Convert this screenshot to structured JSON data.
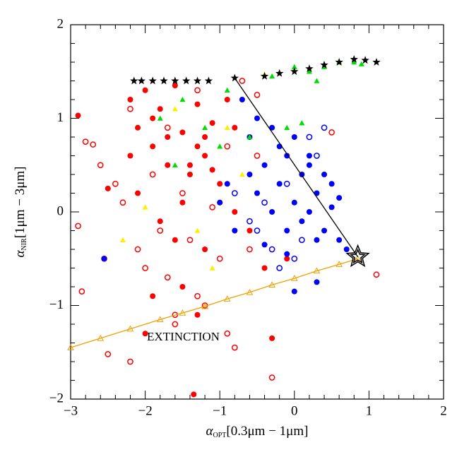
{
  "chart_data": {
    "type": "scatter",
    "xlabel": {
      "symbol": "α",
      "sub": "OPT",
      "range": "[0.3μm − 1μm]"
    },
    "ylabel": {
      "symbol": "α",
      "sub": "NIR",
      "range": "[1μm − 3μm]"
    },
    "annotations": [
      "EXTINCTION"
    ],
    "annotation_color": "#f0a000",
    "xlim": [
      -3,
      2
    ],
    "ylim": [
      -2,
      2
    ],
    "xticks": [
      {
        "value": -3,
        "label": "−3"
      },
      {
        "value": -2,
        "label": "−2"
      },
      {
        "value": -1,
        "label": "−1"
      },
      0,
      1,
      2
    ],
    "yticks": [
      {
        "value": -2,
        "label": "−2"
      },
      {
        "value": -1,
        "label": "−1"
      },
      0,
      1,
      2
    ],
    "series": [
      {
        "color": "#ff0000",
        "marker": "circle-open",
        "x": [
          -2.9,
          -2.85,
          -2.8,
          -2.7,
          -2.55,
          -2.5,
          -2.4,
          -2.3,
          -2.2,
          -2.1,
          -2.0,
          -1.9,
          -1.8,
          -1.7,
          -1.6,
          -1.5,
          -1.4,
          -1.3,
          -1.2,
          -1.1,
          -1.0,
          -0.9,
          -0.7,
          -0.5,
          -0.3,
          -0.6,
          1.1,
          0.5,
          -2.2,
          -1.7,
          -0.8,
          -2.6,
          -1.3,
          -0.9,
          -1.6,
          -0.5
        ],
        "y": [
          -0.15,
          -0.85,
          0.75,
          0.72,
          -0.5,
          -1.52,
          0.3,
          0.1,
          -1.6,
          -0.4,
          -0.6,
          0.4,
          -0.2,
          -0.7,
          -1.2,
          0.2,
          -0.3,
          -0.9,
          -1.0,
          0.05,
          -0.5,
          -1.3,
          1.4,
          1.25,
          -1.77,
          -0.4,
          -0.67,
          0.85,
          1.1,
          0.9,
          -1.45,
          0.5,
          1.3,
          0.7,
          -1.1,
          0.6
        ]
      },
      {
        "color": "#ff0000",
        "marker": "circle",
        "x": [
          -2.9,
          -2.2,
          -2.1,
          -2.0,
          -1.9,
          -1.8,
          -1.7,
          -1.6,
          -1.5,
          -1.4,
          -1.3,
          -1.2,
          -1.1,
          -1.0,
          -0.9,
          -2.1,
          -1.9,
          -1.7,
          -1.5,
          -1.3,
          -1.1,
          -2.2,
          -1.8,
          -1.4,
          -1.0,
          -0.6,
          -2.5,
          -1.6,
          -1.2,
          -0.8,
          -0.4,
          -1.9,
          -1.3,
          -0.3,
          -2.0,
          -1.5,
          -1.35,
          -0.1,
          -1.2,
          -0.8
        ],
        "y": [
          1.03,
          1.2,
          0.9,
          1.3,
          0.7,
          1.1,
          0.5,
          1.35,
          0.85,
          0.4,
          1.15,
          0.6,
          0.95,
          0.3,
          1.2,
          0.2,
          1.0,
          0.8,
          0.1,
          0.7,
          0.45,
          0.6,
          -0.1,
          0.5,
          0.1,
          -0.2,
          0.25,
          -0.3,
          -0.4,
          0.0,
          -0.6,
          -0.9,
          -1.1,
          -1.35,
          -1.3,
          -0.8,
          -1.95,
          -0.5,
          0.8,
          0.9
        ]
      },
      {
        "color": "#0000ff",
        "marker": "circle",
        "x": [
          -0.7,
          -0.6,
          -0.5,
          -0.4,
          -0.3,
          -0.2,
          -0.1,
          0,
          0.1,
          0.2,
          0.3,
          0.4,
          0.5,
          0.6,
          0.7,
          -0.5,
          -0.3,
          -0.1,
          0.1,
          0.3,
          0.5,
          -0.2,
          0,
          0.2,
          0.4,
          0.6,
          -0.4,
          -0.1,
          0.2,
          -0.6,
          -0.9,
          -2.55,
          0.3,
          0.0,
          -1.0,
          -0.8
        ],
        "y": [
          1.2,
          0.8,
          1.0,
          0.5,
          0.9,
          0.3,
          0.6,
          0.1,
          0.4,
          0.0,
          0.2,
          -0.2,
          0.05,
          -0.3,
          -0.4,
          0.2,
          0.0,
          -0.2,
          -0.1,
          -0.3,
          0.3,
          0.7,
          0.8,
          0.5,
          0.4,
          0.15,
          -0.35,
          -0.45,
          0.6,
          0.4,
          0.3,
          -0.5,
          -0.75,
          -0.85,
          0.1,
          -0.2
        ]
      },
      {
        "color": "#0000ff",
        "marker": "circle-open",
        "x": [
          -0.5,
          -0.3,
          -0.1,
          0.1,
          0.3,
          -0.4,
          0,
          0.2,
          -0.6,
          -0.2,
          0.4,
          -0.8
        ],
        "y": [
          -0.2,
          -0.4,
          0.3,
          -0.3,
          0.6,
          0.1,
          -0.5,
          0.8,
          -0.1,
          -0.6,
          0.9,
          0.2
        ]
      },
      {
        "color": "#00dd00",
        "marker": "triangle",
        "x": [
          -1.8,
          -1.5,
          -1.2,
          -0.9,
          -0.6,
          -0.3,
          0,
          0.2,
          0.4,
          0.6,
          0.8,
          0.9,
          -0.1,
          0.1,
          -1.0,
          -1.6,
          0.3
        ],
        "y": [
          1.0,
          1.2,
          0.9,
          1.3,
          0.8,
          1.45,
          1.55,
          1.5,
          1.55,
          1.6,
          1.6,
          1.58,
          0.9,
          0.95,
          0.7,
          0.5,
          1.4
        ]
      },
      {
        "color": "#ffee00",
        "marker": "triangle",
        "x": [
          -2.0,
          -1.6,
          -1.3,
          -0.9,
          -0.4,
          -1.1,
          -2.3,
          -0.7
        ],
        "y": [
          0.05,
          1.1,
          -0.2,
          0.9,
          1.47,
          -0.6,
          -0.3,
          0.4
        ]
      },
      {
        "color": "#000000",
        "marker": "star",
        "x": [
          -2.15,
          -2.05,
          -1.9,
          -1.75,
          -1.6,
          -1.45,
          -1.3,
          -1.15,
          -0.8,
          -0.4,
          -0.2,
          0,
          0.2,
          0.4,
          0.6,
          0.8,
          0.95,
          1.1
        ],
        "y": [
          1.4,
          1.4,
          1.4,
          1.4,
          1.4,
          1.4,
          1.4,
          1.4,
          1.43,
          1.45,
          1.48,
          1.5,
          1.53,
          1.57,
          1.6,
          1.63,
          1.62,
          1.6
        ]
      },
      {
        "color": "#f0a000",
        "marker": "triangle-open",
        "line": true,
        "x": [
          -3,
          -2.6,
          -2.2,
          -1.8,
          -1.5,
          -1.2,
          -0.9,
          -0.6,
          -0.3,
          0,
          0.3,
          0.6,
          0.85
        ],
        "y": [
          -1.45,
          -1.35,
          -1.25,
          -1.15,
          -1.08,
          -1.01,
          -0.93,
          -0.86,
          -0.78,
          -0.71,
          -0.63,
          -0.56,
          -0.5
        ]
      },
      {
        "color": "#000000",
        "marker": "none",
        "line": true,
        "x": [
          -0.8,
          0.85
        ],
        "y": [
          1.43,
          -0.48
        ]
      },
      {
        "color": "#000000",
        "marker": "bigstar",
        "x": [
          0.85
        ],
        "y": [
          -0.48
        ]
      }
    ]
  }
}
